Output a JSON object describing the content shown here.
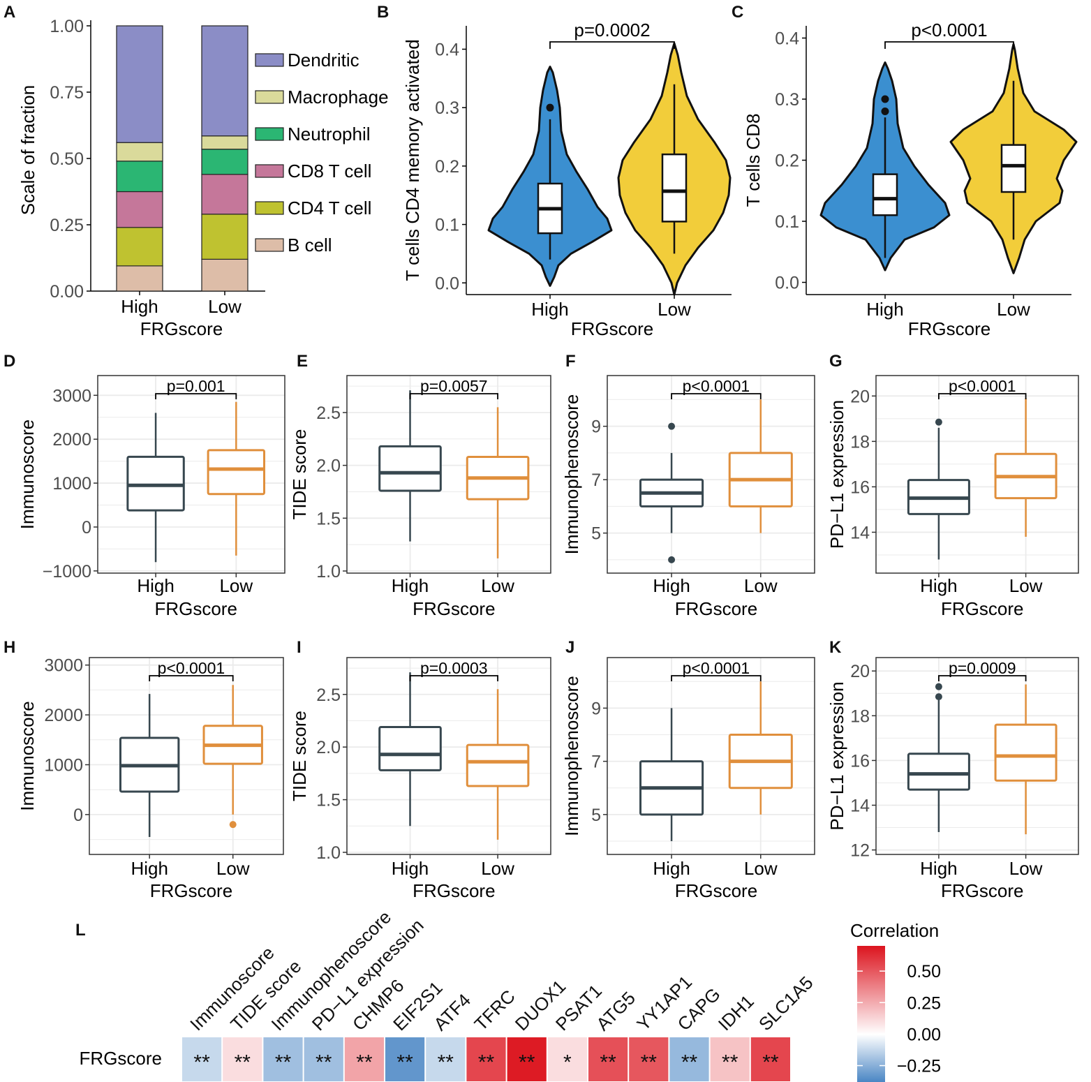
{
  "panels": {
    "A": "A",
    "B": "B",
    "C": "C",
    "D": "D",
    "E": "E",
    "F": "F",
    "G": "G",
    "H": "H",
    "I": "I",
    "J": "J",
    "K": "K",
    "L": "L"
  },
  "colors": {
    "high_box": "#37474f",
    "low_box": "#e08f3c",
    "violin_high": "#3b8fd0",
    "violin_low": "#f2cd3a",
    "grid": "#ebebeb"
  },
  "chart_data": [
    {
      "id": "A",
      "type": "bar",
      "stacked": true,
      "title": "",
      "xlabel": "FRGscore",
      "ylabel": "Scale of fraction",
      "categories": [
        "High",
        "Low"
      ],
      "ylim": [
        0,
        1
      ],
      "yticks": [
        "0.00",
        "0.25",
        "0.50",
        "0.75",
        "1.00"
      ],
      "legend": "right",
      "series": [
        {
          "name": "B cell",
          "color": "#ddbda8",
          "values": [
            0.095,
            0.12
          ]
        },
        {
          "name": "CD4 T cell",
          "color": "#bfc230",
          "values": [
            0.145,
            0.17
          ]
        },
        {
          "name": "CD8 T cell",
          "color": "#c5779a",
          "values": [
            0.135,
            0.15
          ]
        },
        {
          "name": "Neutrophil",
          "color": "#2bb673",
          "values": [
            0.115,
            0.095
          ]
        },
        {
          "name": "Macrophage",
          "color": "#dada9b",
          "values": [
            0.07,
            0.05
          ]
        },
        {
          "name": "Dendritic",
          "color": "#8b8dc6",
          "values": [
            0.44,
            0.415
          ]
        }
      ],
      "legend_order": [
        "Dendritic",
        "Macrophage",
        "Neutrophil",
        "CD8 T cell",
        "CD4 T cell",
        "B cell"
      ]
    },
    {
      "id": "B",
      "type": "violin",
      "xlabel": "FRGscore",
      "ylabel": "T cells CD4 memory activated",
      "categories": [
        "High",
        "Low"
      ],
      "ylim": [
        -0.02,
        0.44
      ],
      "yticks": [
        "0.0",
        "0.1",
        "0.2",
        "0.3",
        "0.4"
      ],
      "pvalue": "p=0.0002",
      "boxes": [
        {
          "category": "High",
          "whisker_low": 0.04,
          "q1": 0.085,
          "median": 0.127,
          "q3": 0.17,
          "whisker_high": 0.28,
          "outliers": [
            0.3
          ]
        },
        {
          "category": "Low",
          "whisker_low": 0.05,
          "q1": 0.105,
          "median": 0.157,
          "q3": 0.22,
          "whisker_high": 0.34,
          "outliers": []
        }
      ]
    },
    {
      "id": "C",
      "type": "violin",
      "xlabel": "FRGscore",
      "ylabel": "T cells CD8",
      "categories": [
        "High",
        "Low"
      ],
      "ylim": [
        -0.02,
        0.42
      ],
      "yticks": [
        "0.0",
        "0.1",
        "0.2",
        "0.3",
        "0.4"
      ],
      "pvalue": "p<0.0001",
      "boxes": [
        {
          "category": "High",
          "whisker_low": 0.04,
          "q1": 0.11,
          "median": 0.137,
          "q3": 0.177,
          "whisker_high": 0.27,
          "outliers": [
            0.28,
            0.3
          ]
        },
        {
          "category": "Low",
          "whisker_low": 0.07,
          "q1": 0.148,
          "median": 0.191,
          "q3": 0.225,
          "whisker_high": 0.33,
          "outliers": []
        }
      ]
    },
    {
      "id": "D",
      "type": "box",
      "xlabel": "FRGscore",
      "ylabel": "Immunoscore",
      "categories": [
        "High",
        "Low"
      ],
      "ylim": [
        -1050,
        3450
      ],
      "yticks": [
        {
          "v": -1000,
          "t": "−1000"
        },
        {
          "v": 0,
          "t": "0"
        },
        {
          "v": 1000,
          "t": "1000"
        },
        {
          "v": 2000,
          "t": "2000"
        },
        {
          "v": 3000,
          "t": "3000"
        }
      ],
      "pvalue": "p=0.001",
      "boxes": [
        {
          "category": "High",
          "whisker_low": -800,
          "q1": 380,
          "median": 950,
          "q3": 1600,
          "whisker_high": 2600,
          "outliers": []
        },
        {
          "category": "Low",
          "whisker_low": -650,
          "q1": 750,
          "median": 1320,
          "q3": 1750,
          "whisker_high": 2850,
          "outliers": []
        }
      ]
    },
    {
      "id": "E",
      "type": "box",
      "xlabel": "FRGscore",
      "ylabel": "TIDE score",
      "categories": [
        "High",
        "Low"
      ],
      "ylim": [
        0.98,
        2.85
      ],
      "yticks": [
        {
          "v": 1.0,
          "t": "1.0"
        },
        {
          "v": 1.5,
          "t": "1.5"
        },
        {
          "v": 2.0,
          "t": "2.0"
        },
        {
          "v": 2.5,
          "t": "2.5"
        }
      ],
      "pvalue": "p=0.0057",
      "boxes": [
        {
          "category": "High",
          "whisker_low": 1.28,
          "q1": 1.76,
          "median": 1.93,
          "q3": 2.18,
          "whisker_high": 2.71,
          "outliers": []
        },
        {
          "category": "Low",
          "whisker_low": 1.12,
          "q1": 1.68,
          "median": 1.88,
          "q3": 2.08,
          "whisker_high": 2.55,
          "outliers": []
        }
      ]
    },
    {
      "id": "F",
      "type": "box",
      "xlabel": "FRGscore",
      "ylabel": "Immunophenoscore",
      "categories": [
        "High",
        "Low"
      ],
      "ylim": [
        3.5,
        10.9
      ],
      "yticks": [
        {
          "v": 5,
          "t": "5"
        },
        {
          "v": 7,
          "t": "7"
        },
        {
          "v": 9,
          "t": "9"
        }
      ],
      "pvalue": "p<0.0001",
      "boxes": [
        {
          "category": "High",
          "whisker_low": 5,
          "q1": 6,
          "median": 6.5,
          "q3": 7,
          "whisker_high": 8,
          "outliers": [
            9,
            4
          ]
        },
        {
          "category": "Low",
          "whisker_low": 5,
          "q1": 6,
          "median": 7,
          "q3": 8,
          "whisker_high": 10,
          "outliers": []
        }
      ]
    },
    {
      "id": "G",
      "type": "box",
      "xlabel": "FRGscore",
      "ylabel": "PD−L1 expression",
      "categories": [
        "High",
        "Low"
      ],
      "ylim": [
        12.2,
        20.9
      ],
      "yticks": [
        {
          "v": 14,
          "t": "14"
        },
        {
          "v": 16,
          "t": "16"
        },
        {
          "v": 18,
          "t": "18"
        },
        {
          "v": 20,
          "t": "20"
        }
      ],
      "pvalue": "p<0.0001",
      "boxes": [
        {
          "category": "High",
          "whisker_low": 12.8,
          "q1": 14.8,
          "median": 15.5,
          "q3": 16.3,
          "whisker_high": 18.6,
          "outliers": [
            18.85
          ]
        },
        {
          "category": "Low",
          "whisker_low": 13.8,
          "q1": 15.5,
          "median": 16.45,
          "q3": 17.45,
          "whisker_high": 19.9,
          "outliers": []
        }
      ]
    },
    {
      "id": "H",
      "type": "box",
      "xlabel": "FRGscore",
      "ylabel": "Immunoscore",
      "categories": [
        "High",
        "Low"
      ],
      "ylim": [
        -800,
        3150
      ],
      "yticks": [
        {
          "v": 0,
          "t": "0"
        },
        {
          "v": 1000,
          "t": "1000"
        },
        {
          "v": 2000,
          "t": "2000"
        },
        {
          "v": 3000,
          "t": "3000"
        }
      ],
      "pvalue": "p<0.0001",
      "boxes": [
        {
          "category": "High",
          "whisker_low": -450,
          "q1": 460,
          "median": 980,
          "q3": 1540,
          "whisker_high": 2420,
          "outliers": []
        },
        {
          "category": "Low",
          "whisker_low": 0,
          "q1": 1020,
          "median": 1390,
          "q3": 1780,
          "whisker_high": 2600,
          "outliers": [
            -200
          ]
        }
      ]
    },
    {
      "id": "I",
      "type": "box",
      "xlabel": "FRGscore",
      "ylabel": "TIDE score",
      "categories": [
        "High",
        "Low"
      ],
      "ylim": [
        0.98,
        2.85
      ],
      "yticks": [
        {
          "v": 1.0,
          "t": "1.0"
        },
        {
          "v": 1.5,
          "t": "1.5"
        },
        {
          "v": 2.0,
          "t": "2.0"
        },
        {
          "v": 2.5,
          "t": "2.5"
        }
      ],
      "pvalue": "p=0.0003",
      "boxes": [
        {
          "category": "High",
          "whisker_low": 1.25,
          "q1": 1.78,
          "median": 1.93,
          "q3": 2.19,
          "whisker_high": 2.71,
          "outliers": []
        },
        {
          "category": "Low",
          "whisker_low": 1.12,
          "q1": 1.63,
          "median": 1.86,
          "q3": 2.02,
          "whisker_high": 2.55,
          "outliers": []
        }
      ]
    },
    {
      "id": "J",
      "type": "box",
      "xlabel": "FRGscore",
      "ylabel": "Immunophenoscore",
      "categories": [
        "High",
        "Low"
      ],
      "ylim": [
        3.5,
        10.9
      ],
      "yticks": [
        {
          "v": 5,
          "t": "5"
        },
        {
          "v": 7,
          "t": "7"
        },
        {
          "v": 9,
          "t": "9"
        }
      ],
      "pvalue": "p<0.0001",
      "boxes": [
        {
          "category": "High",
          "whisker_low": 4,
          "q1": 5,
          "median": 6,
          "q3": 7,
          "whisker_high": 9,
          "outliers": []
        },
        {
          "category": "Low",
          "whisker_low": 5,
          "q1": 6,
          "median": 7,
          "q3": 8,
          "whisker_high": 10,
          "outliers": []
        }
      ]
    },
    {
      "id": "K",
      "type": "box",
      "xlabel": "FRGscore",
      "ylabel": "PD−L1 expression",
      "categories": [
        "High",
        "Low"
      ],
      "ylim": [
        11.8,
        20.6
      ],
      "yticks": [
        {
          "v": 12,
          "t": "12"
        },
        {
          "v": 14,
          "t": "14"
        },
        {
          "v": 16,
          "t": "16"
        },
        {
          "v": 18,
          "t": "18"
        },
        {
          "v": 20,
          "t": "20"
        }
      ],
      "pvalue": "p=0.0009",
      "boxes": [
        {
          "category": "High",
          "whisker_low": 12.8,
          "q1": 14.7,
          "median": 15.4,
          "q3": 16.3,
          "whisker_high": 18.7,
          "outliers": [
            18.85,
            19.3
          ]
        },
        {
          "category": "Low",
          "whisker_low": 12.7,
          "q1": 15.1,
          "median": 16.2,
          "q3": 17.6,
          "whisker_high": 19.4,
          "outliers": []
        }
      ]
    },
    {
      "id": "L",
      "type": "heatmap",
      "row_label": "FRGscore",
      "columns": [
        "Immunoscore",
        "TIDE score",
        "Immunophenoscore",
        "PD−L1 expression",
        "CHMP6",
        "EIF2S1",
        "ATF4",
        "TFRC",
        "DUOX1",
        "PSAT1",
        "ATG5",
        "YY1AP1",
        "CAPG",
        "IDH1",
        "SLC1A5"
      ],
      "values": [
        -0.12,
        0.1,
        -0.2,
        -0.2,
        0.27,
        -0.33,
        -0.12,
        0.55,
        0.68,
        0.1,
        0.52,
        0.5,
        -0.22,
        0.18,
        0.55
      ],
      "significance": [
        "**",
        "**",
        "**",
        "**",
        "**",
        "**",
        "**",
        "**",
        "**",
        "*",
        "**",
        "**",
        "**",
        "**",
        "**"
      ],
      "legend_title": "Correlation",
      "legend_ticks": [
        "0.50",
        "0.25",
        "0.00",
        "−0.25"
      ],
      "legend_range": [
        -0.38,
        0.7
      ]
    }
  ]
}
